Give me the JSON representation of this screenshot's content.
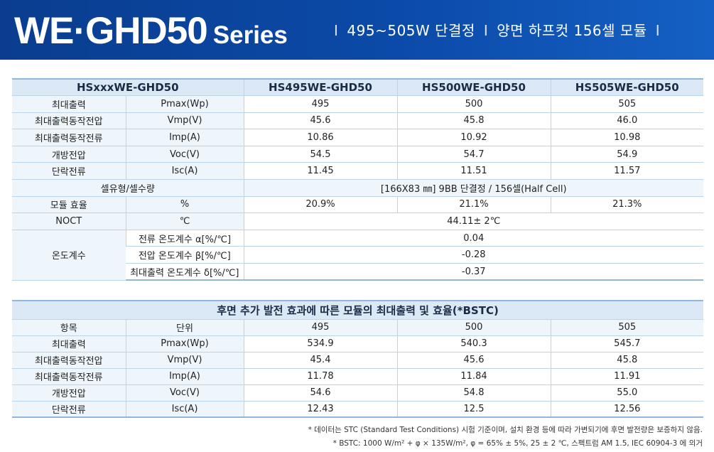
{
  "banner": {
    "model": "WE·GHD50",
    "series": "Series",
    "sep": "I",
    "sub1": "495~505W 단결정",
    "sub2": "양면 하프컷 156셀 모듈"
  },
  "spec": {
    "header": [
      "HSxxxWE-GHD50",
      "HS495WE-GHD50",
      "HS500WE-GHD50",
      "HS505WE-GHD50"
    ],
    "rows": [
      {
        "name": "최대출력",
        "unit": "Pmax(Wp)",
        "v": [
          "495",
          "500",
          "505"
        ]
      },
      {
        "name": "최대출력동작전압",
        "unit": "Vmp(V)",
        "v": [
          "45.6",
          "45.8",
          "46.0"
        ]
      },
      {
        "name": "최대출력동작전류",
        "unit": "Imp(A)",
        "v": [
          "10.86",
          "10.92",
          "10.98"
        ]
      },
      {
        "name": "개방전압",
        "unit": "Voc(V)",
        "v": [
          "54.5",
          "54.7",
          "54.9"
        ]
      },
      {
        "name": "단락전류",
        "unit": "Isc(A)",
        "v": [
          "11.45",
          "11.51",
          "11.57"
        ]
      }
    ],
    "cell_label": "셀유형/셀수량",
    "cell_value": "[166X83 ㎜] 9BB 단결정 / 156셀(Half Cell)",
    "eff": {
      "name": "모듈 효율",
      "unit": "%",
      "v": [
        "20.9%",
        "21.1%",
        "21.3%"
      ]
    },
    "noct": {
      "name": "NOCT",
      "unit": "℃",
      "value": "44.11± 2℃"
    },
    "temp": {
      "name": "온도계수",
      "items": [
        {
          "label": "전류 온도계수 α[%/℃]",
          "value": "0.04"
        },
        {
          "label": "전압 온도계수 β[%/℃]",
          "value": "-0.28"
        },
        {
          "label": "최대출력 온도계수 δ[%/℃]",
          "value": "-0.37"
        }
      ]
    }
  },
  "rear": {
    "title": "후면 추가 발전 효과에 따른 모듈의 최대출력 및 효율(*BSTC)",
    "header": [
      "항목",
      "단위",
      "495",
      "500",
      "505"
    ],
    "rows": [
      {
        "name": "최대출력",
        "unit": "Pmax(Wp)",
        "v": [
          "534.9",
          "540.3",
          "545.7"
        ]
      },
      {
        "name": "최대출력동작전압",
        "unit": "Vmp(V)",
        "v": [
          "45.4",
          "45.6",
          "45.8"
        ]
      },
      {
        "name": "최대출력동작전류",
        "unit": "Imp(A)",
        "v": [
          "11.78",
          "11.84",
          "11.91"
        ]
      },
      {
        "name": "개방전압",
        "unit": "Voc(V)",
        "v": [
          "54.6",
          "54.8",
          "55.0"
        ]
      },
      {
        "name": "단락전류",
        "unit": "Isc(A)",
        "v": [
          "12.43",
          "12.5",
          "12.56"
        ]
      }
    ]
  },
  "notes": [
    "* 데이터는 STC (Standard Test Conditions) 시험 기준이며, 설치 환경 등에 따라 가변되기에 후면 발전량은 보증하지 않음.",
    "* BSTC: 1000 W/m² + φ × 135W/m², φ = 65% ± 5%, 25 ± 2 ℃, 스펙트럼 AM 1.5, IEC 60904-3 에 의거"
  ]
}
